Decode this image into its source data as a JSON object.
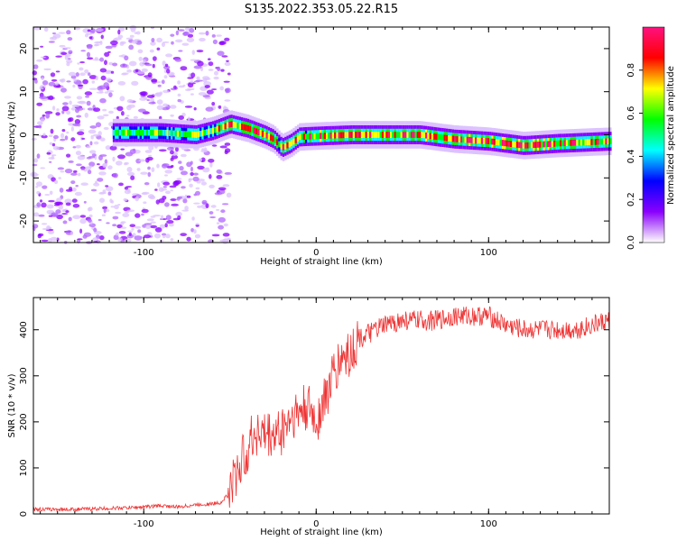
{
  "page": {
    "title": "S135.2022.353.05.22.R15"
  },
  "chart_data": [
    {
      "type": "heatmap",
      "xlabel": "Height of straight line (km)",
      "ylabel": "Frequency (Hz)",
      "xlim": [
        -164,
        170
      ],
      "ylim": [
        -25,
        25
      ],
      "x_ticks": [
        -100,
        0,
        100
      ],
      "y_ticks": [
        -20,
        -10,
        0,
        10,
        20
      ],
      "colorbar": {
        "label": "Normalized spectral amplitude",
        "range": [
          0,
          1
        ],
        "ticks": [
          "0.0",
          "0.2",
          "0.4",
          "0.6",
          "0.8"
        ],
        "colors": [
          "#ffffff",
          "#8a00ff",
          "#0000ff",
          "#00ffff",
          "#00ff00",
          "#ffff00",
          "#ff0000",
          "#ff1080"
        ]
      },
      "ridge": {
        "description_points_x": [
          -110,
          -90,
          -70,
          -60,
          -50,
          -40,
          -30,
          -25,
          -20,
          -15,
          -10,
          0,
          20,
          40,
          60,
          80,
          100,
          120,
          140,
          170
        ],
        "description_points_y": [
          0.5,
          0.5,
          0.0,
          1.0,
          2.5,
          1.5,
          0.0,
          -1.0,
          -3.0,
          -2.0,
          -0.5,
          -0.3,
          0.0,
          0.0,
          0.0,
          -1.0,
          -1.5,
          -2.5,
          -2.0,
          -1.5
        ]
      }
    },
    {
      "type": "line",
      "xlabel": "Height of straight line (km)",
      "ylabel": "SNR (10 * v/v)",
      "xlim": [
        -164,
        170
      ],
      "ylim": [
        0,
        470
      ],
      "x_ticks": [
        -100,
        0,
        100
      ],
      "y_ticks": [
        0,
        100,
        200,
        300,
        400
      ],
      "series": [
        {
          "color": "#ee3333",
          "x": [
            -164,
            -140,
            -120,
            -100,
            -90,
            -80,
            -70,
            -60,
            -55,
            -50,
            -45,
            -40,
            -35,
            -30,
            -25,
            -20,
            -15,
            -10,
            -5,
            0,
            5,
            10,
            15,
            20,
            25,
            30,
            40,
            50,
            60,
            70,
            80,
            90,
            100,
            110,
            120,
            130,
            140,
            150,
            160,
            170
          ],
          "y": [
            10,
            10,
            12,
            15,
            18,
            15,
            20,
            22,
            25,
            50,
            100,
            140,
            180,
            170,
            170,
            180,
            210,
            220,
            230,
            200,
            250,
            300,
            340,
            350,
            380,
            390,
            410,
            420,
            420,
            420,
            430,
            430,
            430,
            410,
            400,
            400,
            400,
            400,
            410,
            420
          ]
        }
      ]
    }
  ]
}
